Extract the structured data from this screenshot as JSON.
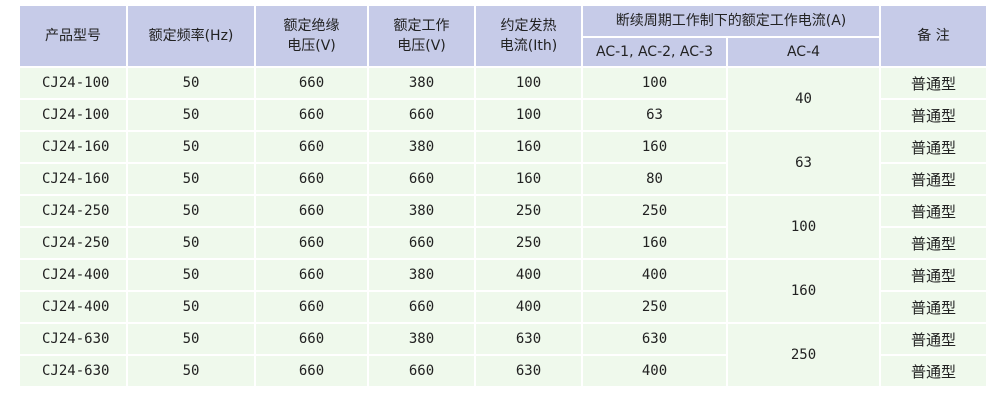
{
  "headers": {
    "model": "产品型号",
    "freq": "额定频率(Hz)",
    "insul_1": "额定绝缘",
    "insul_2": "电压(V)",
    "work_1": "额定工作",
    "work_2": "电压(V)",
    "ith_1": "约定发热",
    "ith_2": "电流(Ith)",
    "group": "断续周期工作制下的额定工作电流(A)",
    "ac123": "AC-1, AC-2, AC-3",
    "ac4": "AC-4",
    "note": "备 注"
  },
  "rows": [
    {
      "model": "CJ24-100",
      "freq": "50",
      "insul": "660",
      "work": "380",
      "ith": "100",
      "ac123": "100",
      "note": "普通型"
    },
    {
      "model": "CJ24-100",
      "freq": "50",
      "insul": "660",
      "work": "660",
      "ith": "100",
      "ac123": "63",
      "note": "普通型"
    },
    {
      "model": "CJ24-160",
      "freq": "50",
      "insul": "660",
      "work": "380",
      "ith": "160",
      "ac123": "160",
      "note": "普通型"
    },
    {
      "model": "CJ24-160",
      "freq": "50",
      "insul": "660",
      "work": "660",
      "ith": "160",
      "ac123": "80",
      "note": "普通型"
    },
    {
      "model": "CJ24-250",
      "freq": "50",
      "insul": "660",
      "work": "380",
      "ith": "250",
      "ac123": "250",
      "note": "普通型"
    },
    {
      "model": "CJ24-250",
      "freq": "50",
      "insul": "660",
      "work": "660",
      "ith": "250",
      "ac123": "160",
      "note": "普通型"
    },
    {
      "model": "CJ24-400",
      "freq": "50",
      "insul": "660",
      "work": "380",
      "ith": "400",
      "ac123": "400",
      "note": "普通型"
    },
    {
      "model": "CJ24-400",
      "freq": "50",
      "insul": "660",
      "work": "660",
      "ith": "400",
      "ac123": "250",
      "note": "普通型"
    },
    {
      "model": "CJ24-630",
      "freq": "50",
      "insul": "660",
      "work": "380",
      "ith": "630",
      "ac123": "630",
      "note": "普通型"
    },
    {
      "model": "CJ24-630",
      "freq": "50",
      "insul": "660",
      "work": "660",
      "ith": "630",
      "ac123": "400",
      "note": "普通型"
    }
  ],
  "ac4_values": [
    "40",
    "63",
    "100",
    "160",
    "250"
  ],
  "colors": {
    "header_bg": "#c6cbe8",
    "row_bg": "#eff9ec",
    "border": "#ffffff"
  }
}
